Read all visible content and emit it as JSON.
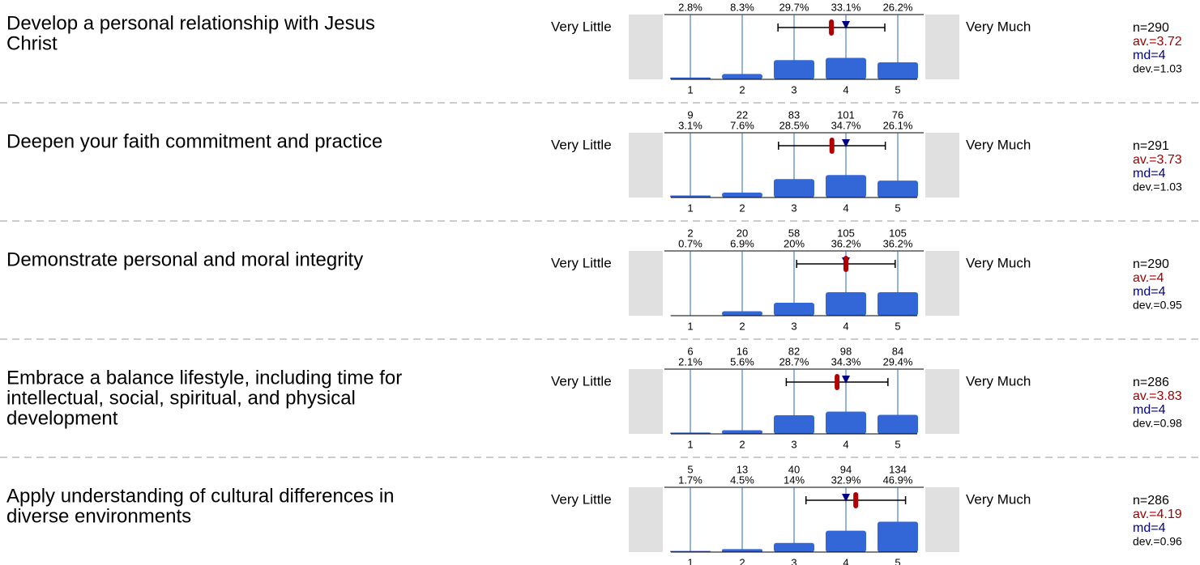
{
  "chart_data": [
    {
      "type": "bar",
      "title_lines": [
        "Develop a personal relationship with Jesus",
        "Christ"
      ],
      "left_label": "Very Little",
      "right_label": "Very Much",
      "categories": [
        "1",
        "2",
        "3",
        "4",
        "5"
      ],
      "values": [
        2.8,
        8.3,
        29.7,
        33.1,
        26.2
      ],
      "value_labels": [
        "2.8%",
        "8.3%",
        "29.7%",
        "33.1%",
        "26.2%"
      ],
      "n_label": "n=290",
      "mean": 3.72,
      "mean_label": "av.=3.72",
      "median": 4,
      "median_label": "md=4",
      "dev": 1.03,
      "dev_label": "dev.=1.03",
      "color": "#3366d6"
    },
    {
      "type": "bar",
      "title_lines": [
        "Deepen your faith commitment and practice"
      ],
      "left_label": "Very Little",
      "right_label": "Very Much",
      "categories": [
        "1",
        "2",
        "3",
        "4",
        "5"
      ],
      "counts": [
        9,
        22,
        83,
        101,
        76
      ],
      "values": [
        3.1,
        7.6,
        28.5,
        34.7,
        26.1
      ],
      "value_labels": [
        "3.1%",
        "7.6%",
        "28.5%",
        "34.7%",
        "26.1%"
      ],
      "n_label": "n=291",
      "mean": 3.73,
      "mean_label": "av.=3.73",
      "median": 4,
      "median_label": "md=4",
      "dev": 1.03,
      "dev_label": "dev.=1.03",
      "color": "#3366d6"
    },
    {
      "type": "bar",
      "title_lines": [
        "Demonstrate personal and moral integrity"
      ],
      "left_label": "Very Little",
      "right_label": "Very Much",
      "categories": [
        "1",
        "2",
        "3",
        "4",
        "5"
      ],
      "counts": [
        2,
        20,
        58,
        105,
        105
      ],
      "values": [
        0.7,
        6.9,
        20,
        36.2,
        36.2
      ],
      "value_labels": [
        "0.7%",
        "6.9%",
        "20%",
        "36.2%",
        "36.2%"
      ],
      "n_label": "n=290",
      "mean": 4,
      "mean_label": "av.=4",
      "median": 4,
      "median_label": "md=4",
      "dev": 0.95,
      "dev_label": "dev.=0.95",
      "color": "#3366d6"
    },
    {
      "type": "bar",
      "title_lines": [
        "Embrace a balance lifestyle, including time for",
        "intellectual, social, spiritual, and physical",
        "development"
      ],
      "left_label": "Very Little",
      "right_label": "Very Much",
      "categories": [
        "1",
        "2",
        "3",
        "4",
        "5"
      ],
      "counts": [
        6,
        16,
        82,
        98,
        84
      ],
      "values": [
        2.1,
        5.6,
        28.7,
        34.3,
        29.4
      ],
      "value_labels": [
        "2.1%",
        "5.6%",
        "28.7%",
        "34.3%",
        "29.4%"
      ],
      "n_label": "n=286",
      "mean": 3.83,
      "mean_label": "av.=3.83",
      "median": 4,
      "median_label": "md=4",
      "dev": 0.98,
      "dev_label": "dev.=0.98",
      "color": "#3366d6"
    },
    {
      "type": "bar",
      "title_lines": [
        "Apply understanding of cultural differences in",
        "diverse environments"
      ],
      "left_label": "Very Little",
      "right_label": "Very Much",
      "categories": [
        "1",
        "2",
        "3",
        "4",
        "5"
      ],
      "counts": [
        5,
        13,
        40,
        94,
        134
      ],
      "values": [
        1.7,
        4.5,
        14,
        32.9,
        46.9
      ],
      "value_labels": [
        "1.7%",
        "4.5%",
        "14%",
        "32.9%",
        "46.9%"
      ],
      "n_label": "n=286",
      "mean": 4.19,
      "mean_label": "av.=4.19",
      "median": 4,
      "median_label": "md=4",
      "dev": 0.96,
      "dev_label": "dev.=0.96",
      "color": "#3366d6"
    }
  ]
}
